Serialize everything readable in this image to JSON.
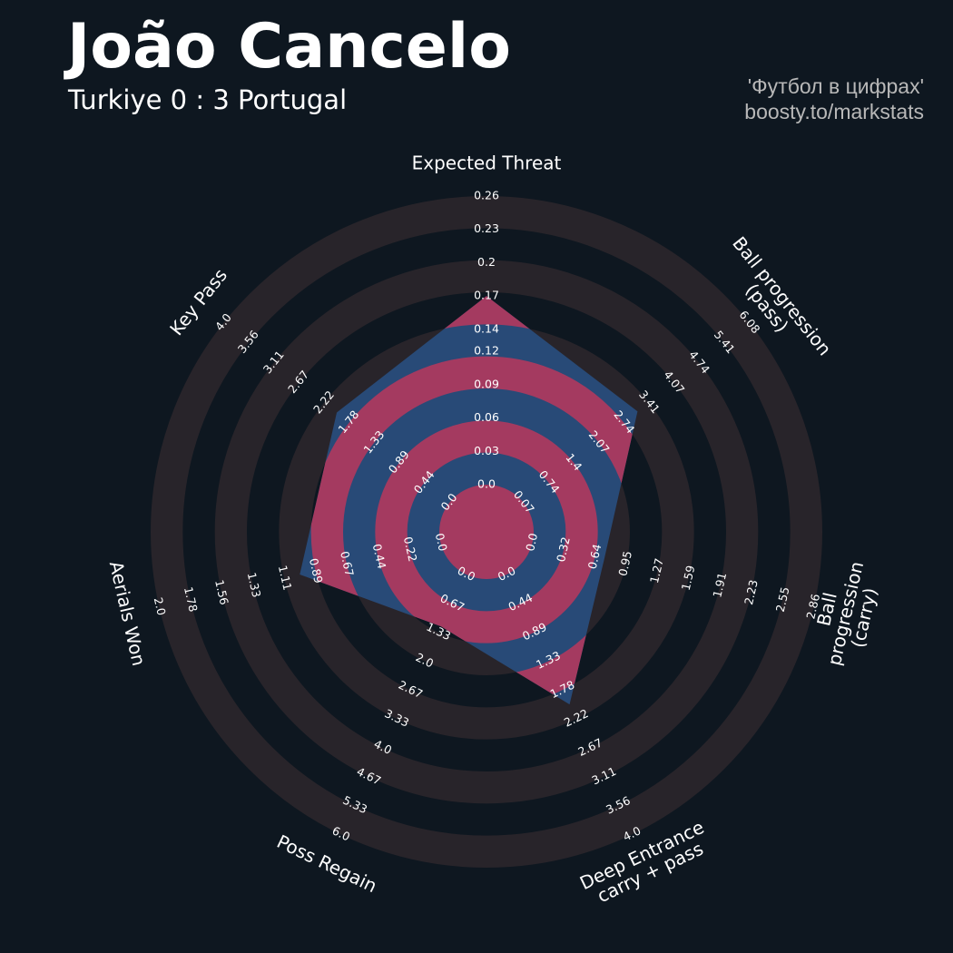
{
  "chart_data": {
    "type": "radar",
    "title": "João Cancelo",
    "subtitle": "Turkiye 0 : 3 Portugal",
    "credits": [
      "'Футбол в цифрах'",
      "boosty.to/markstats"
    ],
    "categories": [
      "Expected Threat",
      "Ball progression (pass)",
      "Ball progression (carry)",
      "Deep Entrance\ncarry + pass",
      "Poss Regain",
      "Aerials Won",
      "Key Pass"
    ],
    "values": [
      0.17,
      3.11,
      0.73,
      2.0,
      1.2,
      1.0,
      2.0
    ],
    "lims": [
      [
        0,
        0.26
      ],
      [
        0.07,
        6.08
      ],
      [
        0,
        2.86
      ],
      [
        0,
        4
      ],
      [
        0,
        6
      ],
      [
        0,
        2
      ],
      [
        0,
        4
      ]
    ],
    "ticks": [
      [
        {
          "value": 0,
          "label": "0.0"
        },
        0.03,
        0.06,
        0.09,
        0.12,
        0.14,
        0.17,
        0.2,
        0.23,
        0.26
      ],
      [
        0.07,
        0.74,
        1.4,
        2.07,
        2.74,
        3.41,
        4.07,
        4.74,
        5.41,
        6.08
      ],
      [
        {
          "value": 0,
          "label": "0.0"
        },
        0.32,
        0.64,
        0.95,
        1.27,
        1.59,
        1.91,
        2.23,
        2.55,
        2.86
      ],
      [
        {
          "value": 0,
          "label": "0.0"
        },
        0.44,
        0.89,
        1.33,
        1.78,
        2.22,
        2.67,
        3.11,
        3.56,
        {
          "value": 4,
          "label": "4.0"
        }
      ],
      [
        {
          "value": 0,
          "label": "0.0"
        },
        0.67,
        1.33,
        {
          "value": 2,
          "label": "2.0"
        },
        2.67,
        3.33,
        {
          "value": 4,
          "label": "4.0"
        },
        4.67,
        5.33,
        {
          "value": 6,
          "label": "6.0"
        }
      ],
      [
        {
          "value": 0,
          "label": "0.0"
        },
        0.22,
        0.44,
        0.67,
        0.89,
        1.11,
        1.33,
        1.56,
        1.78,
        {
          "value": 2,
          "label": "2.0"
        }
      ],
      [
        {
          "value": 0,
          "label": "0.0"
        },
        0.44,
        0.89,
        1.33,
        1.78,
        2.22,
        2.67,
        3.11,
        3.56,
        {
          "value": 4,
          "label": "4.0"
        }
      ]
    ],
    "color": "#284a77",
    "ring_color": "#a43a60",
    "background_ring_color": "#28242a"
  }
}
